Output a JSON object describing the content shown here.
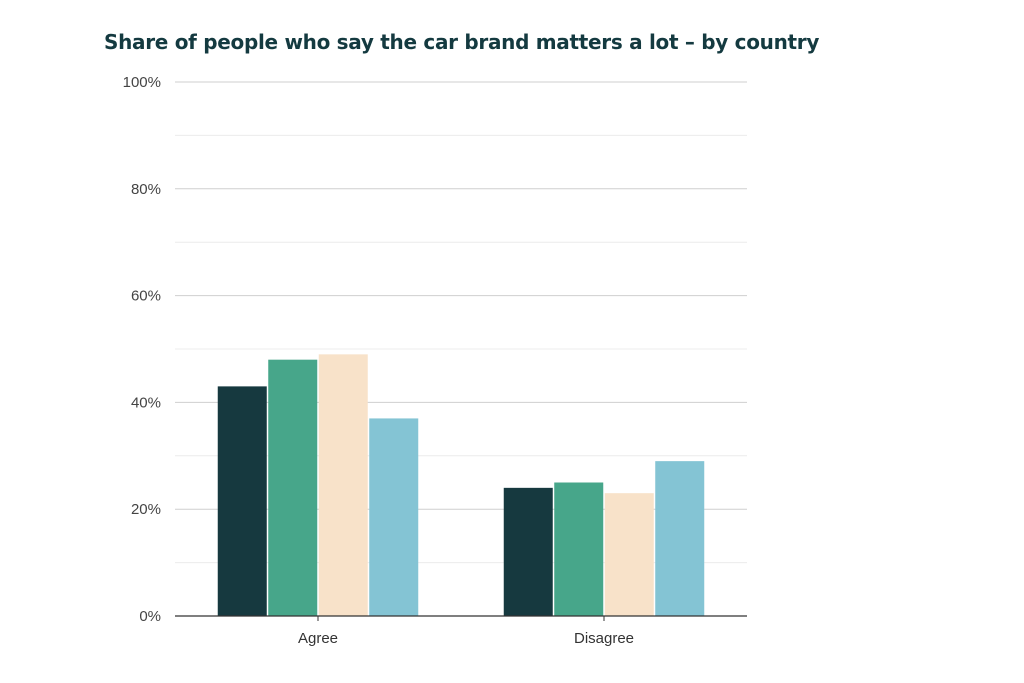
{
  "chart_data": {
    "type": "bar",
    "title": "Share of people who say the car brand matters a lot – by country",
    "xlabel": "",
    "ylabel": "",
    "categories": [
      "Agree",
      "Disagree"
    ],
    "series": [
      {
        "color": "#16393f",
        "values": [
          43,
          24
        ]
      },
      {
        "color": "#47a68a",
        "values": [
          48,
          25
        ]
      },
      {
        "color": "#f8e2c9",
        "values": [
          49,
          23
        ]
      },
      {
        "color": "#84c4d4",
        "values": [
          37,
          29
        ]
      }
    ],
    "ylim": [
      0,
      100
    ],
    "yticks": [
      0,
      20,
      40,
      60,
      80,
      100
    ],
    "ytick_labels": [
      "0%",
      "20%",
      "40%",
      "60%",
      "80%",
      "100%"
    ],
    "grid": true,
    "legend": "none"
  }
}
